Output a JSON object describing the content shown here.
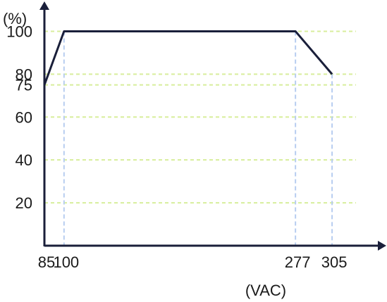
{
  "chart_data": {
    "type": "line",
    "ylabel": "(%)",
    "xlabel": "(VAC)",
    "xlim": [
      85,
      340
    ],
    "ylim": [
      0,
      110
    ],
    "x_ticks": [
      85,
      100,
      277,
      305
    ],
    "x_tick_labels": [
      "85",
      "100",
      "277",
      "305"
    ],
    "y_ticks": [
      100,
      80,
      75,
      60,
      40,
      20
    ],
    "y_tick_labels": [
      "100",
      "80",
      "75",
      "60",
      "40",
      "20"
    ],
    "series": [
      {
        "x": [
          85,
          100,
          277,
          305
        ],
        "y": [
          75,
          100,
          100,
          80
        ]
      }
    ],
    "grid": true,
    "colors": {
      "line": "#1a1f3a",
      "axis": "#1a1f3a",
      "grid_h": "#d8ee9c",
      "grid_v": "#b7cdf0",
      "text": "#1a1a1a"
    }
  }
}
